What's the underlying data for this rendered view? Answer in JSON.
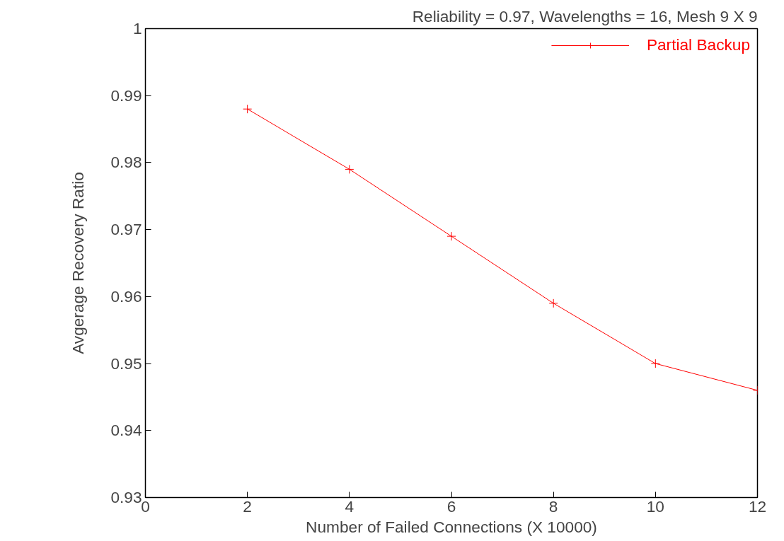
{
  "chart_data": {
    "type": "line",
    "title": "Reliability = 0.97, Wavelengths = 16, Mesh 9 X 9",
    "xlabel": "Number of Failed Connections (X 10000)",
    "ylabel": "Avgerage Recovery Ratio",
    "x": [
      2,
      4,
      6,
      8,
      10,
      12
    ],
    "series": [
      {
        "name": "Partial Backup",
        "color": "#ff0000",
        "values": [
          0.988,
          0.979,
          0.969,
          0.959,
          0.95,
          0.946
        ]
      }
    ],
    "xlim": [
      0,
      12
    ],
    "xticks": [
      0,
      2,
      4,
      6,
      8,
      10,
      12
    ],
    "ylim": [
      0.93,
      1
    ],
    "yticks": [
      0.93,
      0.94,
      0.95,
      0.96,
      0.97,
      0.98,
      0.99,
      1
    ],
    "grid": false,
    "legend": "top right",
    "marker": "cross",
    "line_style": "solid"
  }
}
